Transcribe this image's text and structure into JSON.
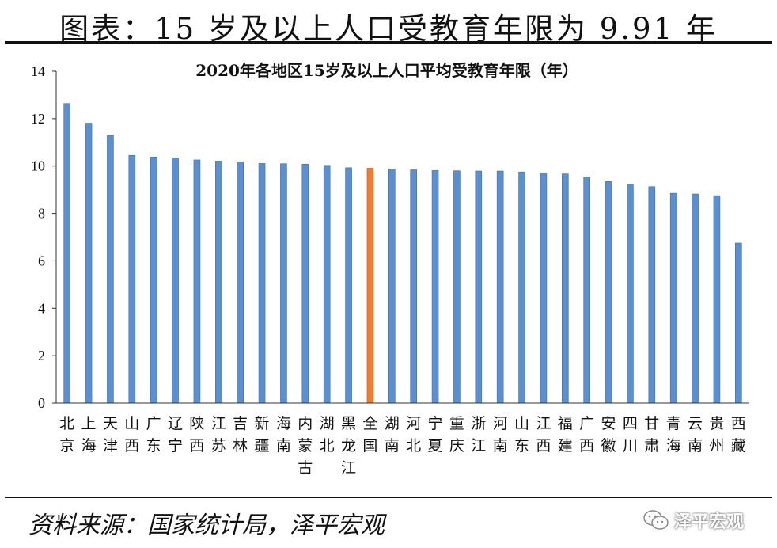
{
  "header": {
    "title": "图表：15 岁及以上人口受教育年限为 9.91 年"
  },
  "footer": {
    "source": "资料来源：国家统计局，泽平宏观"
  },
  "watermark": {
    "text": "泽平宏观",
    "icon": "wechat-icon"
  },
  "colors": {
    "bar": "#5B8FD0",
    "highlight": "#ED7D31",
    "axis": "#333333"
  },
  "chart_data": {
    "type": "bar",
    "title": "2020年各地区15岁及以上人口平均受教育年限（年）",
    "xlabel": "",
    "ylabel": "",
    "ylim": [
      0,
      14
    ],
    "yticks": [
      0,
      2,
      4,
      6,
      8,
      10,
      12,
      14
    ],
    "grid": false,
    "legend": "none",
    "highlight_category": "全国",
    "categories": [
      "北京",
      "上海",
      "天津",
      "山西",
      "广东",
      "辽宁",
      "陕西",
      "江苏",
      "吉林",
      "新疆",
      "海南",
      "内蒙古",
      "湖北",
      "黑龙江",
      "全国",
      "湖南",
      "河北",
      "宁夏",
      "重庆",
      "浙江",
      "河南",
      "山东",
      "江西",
      "福建",
      "广西",
      "安徽",
      "四川",
      "甘肃",
      "青海",
      "云南",
      "贵州",
      "西藏"
    ],
    "values": [
      12.64,
      11.81,
      11.29,
      10.45,
      10.38,
      10.34,
      10.26,
      10.21,
      10.17,
      10.11,
      10.1,
      10.08,
      10.03,
      9.93,
      9.91,
      9.88,
      9.84,
      9.81,
      9.8,
      9.79,
      9.79,
      9.75,
      9.7,
      9.67,
      9.54,
      9.35,
      9.24,
      9.13,
      8.85,
      8.82,
      8.75,
      6.75
    ]
  }
}
